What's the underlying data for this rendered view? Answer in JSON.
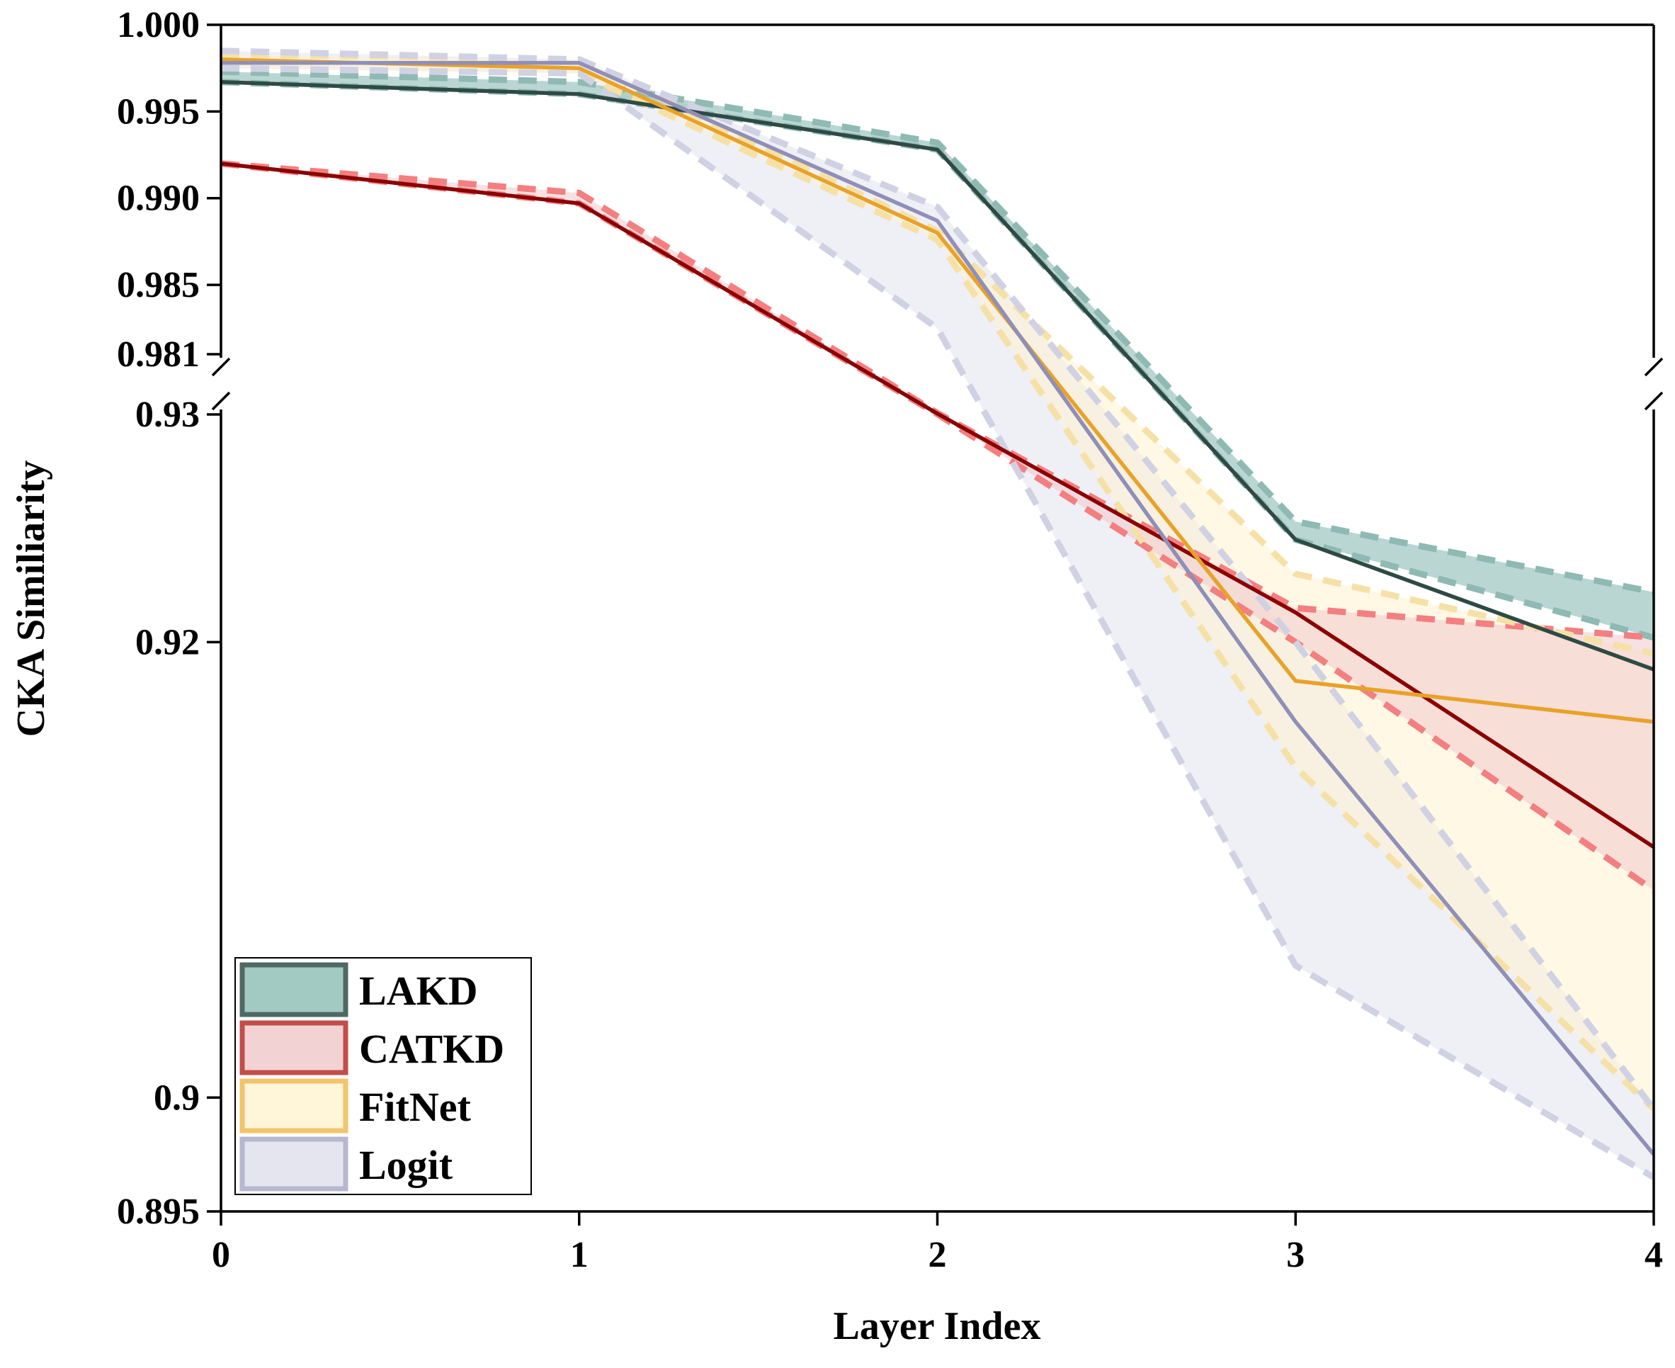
{
  "chart_data": {
    "type": "line",
    "title": "",
    "xlabel": "Layer Index",
    "ylabel": "CKA Similiarity",
    "x": [
      0,
      1,
      2,
      3,
      4
    ],
    "xlim": [
      0,
      4
    ],
    "x_ticks": [
      "0",
      "1",
      "2",
      "3",
      "4"
    ],
    "broken_y_axis": true,
    "ylim_upper": [
      0.981,
      1.0
    ],
    "ylim_lower": [
      0.895,
      0.93
    ],
    "y_ticks_upper": [
      "1.000",
      "0.995",
      "0.990",
      "0.985",
      "0.981"
    ],
    "y_ticks_lower": [
      "0.93",
      "0.92",
      "0.9",
      "0.895"
    ],
    "legend_position": "bottom-left",
    "series": [
      {
        "name": "LAKD",
        "mean": [
          0.9967,
          0.996,
          0.9928,
          0.9245,
          0.9188
        ],
        "upper": [
          0.9973,
          0.9967,
          0.9932,
          0.9253,
          0.9222
        ],
        "lower": [
          0.9967,
          0.996,
          0.9928,
          0.9245,
          0.9202
        ],
        "line_color": "#2f4a44",
        "band_color": "#7fb5ad",
        "border_color": "#8fbab3",
        "legend_fill": "#a3c9c3",
        "legend_edge": "#4f6962"
      },
      {
        "name": "CATKD",
        "mean": [
          0.992,
          0.9897,
          0.9307,
          0.9213,
          0.911
        ],
        "upper": [
          0.992,
          0.9903,
          0.9312,
          0.9215,
          0.9202
        ],
        "lower": [
          0.992,
          0.9897,
          0.9303,
          0.92,
          0.9091
        ],
        "line_color": "#8b0000",
        "band_color": "#f1c9cc",
        "border_color": "#f37f80",
        "legend_fill": "#f3d2d4",
        "legend_edge": "#c24d49"
      },
      {
        "name": "FitNet",
        "mean": [
          0.998,
          0.9975,
          0.988,
          0.9183,
          0.9165
        ],
        "upper": [
          0.9983,
          0.998,
          0.9881,
          0.923,
          0.9195
        ],
        "lower": [
          0.9975,
          0.9972,
          0.9876,
          0.9145,
          0.8995
        ],
        "line_color": "#e8a22a",
        "band_color": "#fff3cf",
        "border_color": "#f5e1a7",
        "legend_fill": "#fff5d9",
        "legend_edge": "#f2c46b"
      },
      {
        "name": "Logit",
        "mean": [
          0.9978,
          0.9978,
          0.9887,
          0.9165,
          0.8975
        ],
        "upper": [
          0.9985,
          0.998,
          0.9895,
          0.92,
          0.8995
        ],
        "lower": [
          0.9975,
          0.9972,
          0.9825,
          0.9058,
          0.8965
        ],
        "line_color": "#8f8fb8",
        "band_color": "#e1e1ee",
        "border_color": "#d1d1e4",
        "legend_fill": "#e5e5f0",
        "legend_edge": "#b7b7d0"
      }
    ]
  }
}
